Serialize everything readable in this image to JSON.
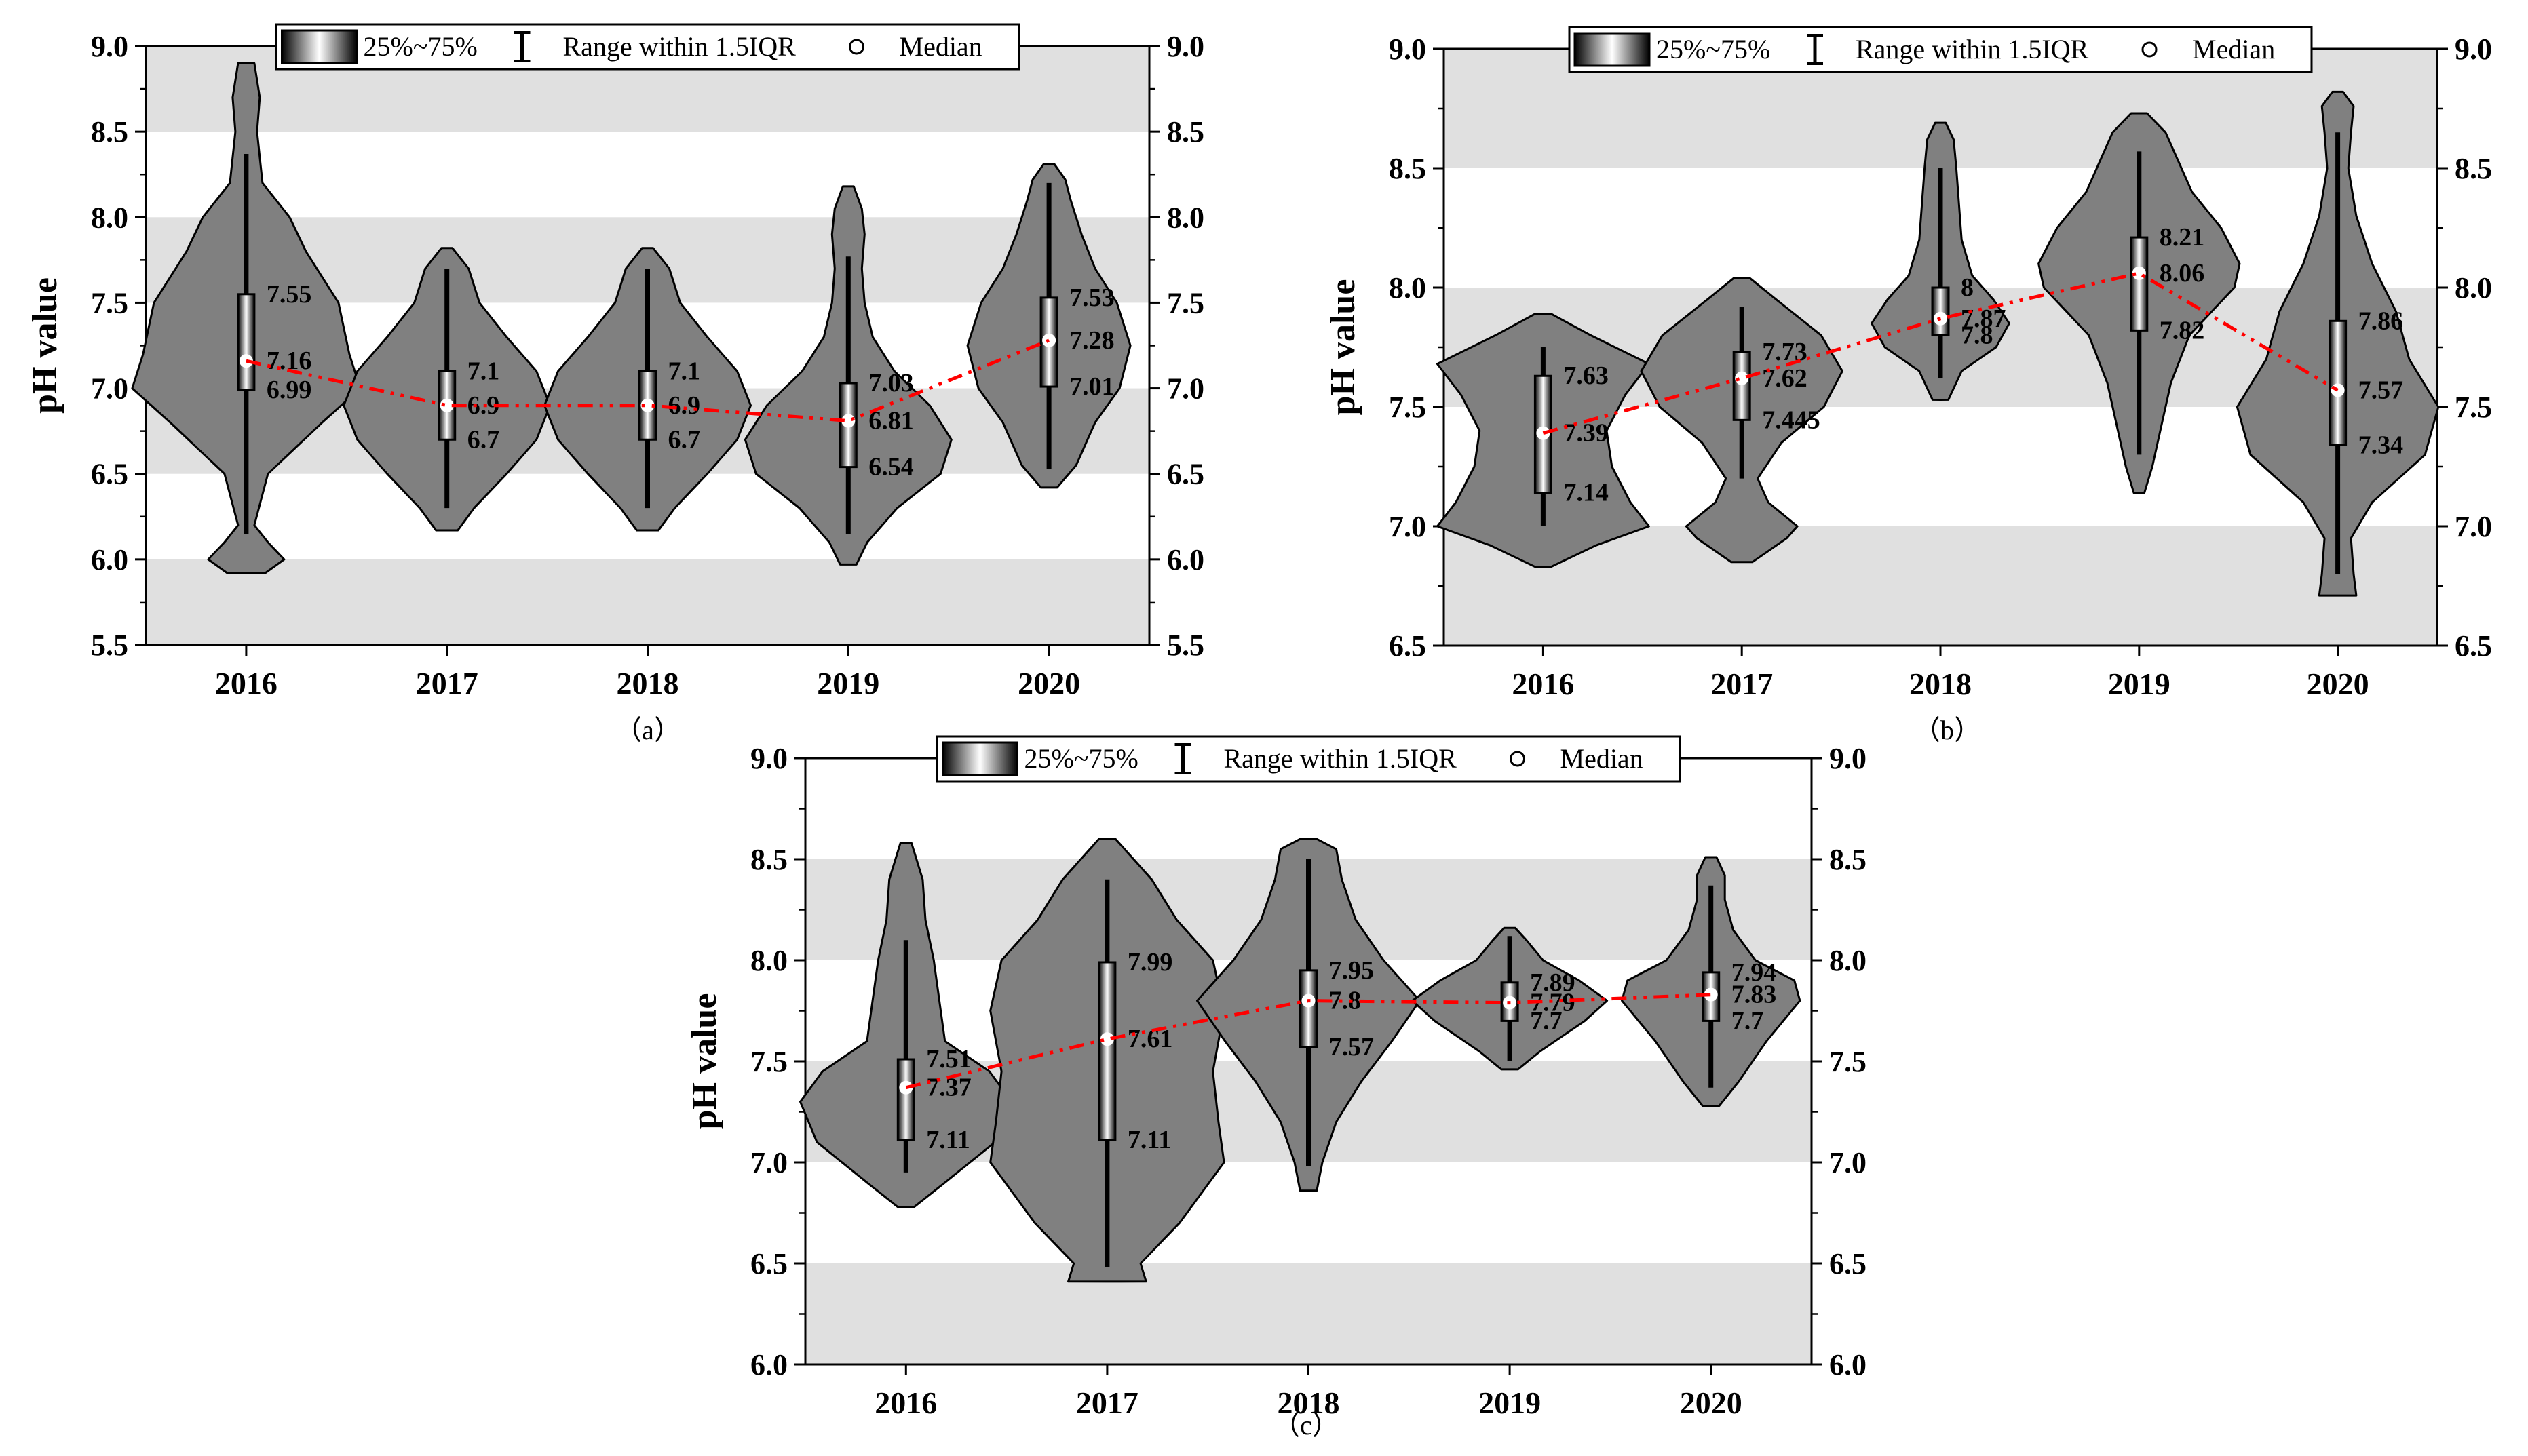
{
  "legend": {
    "iqr_label": "25%~75%",
    "range_label": "Range within 1.5IQR",
    "median_label": "Median"
  },
  "colors": {
    "violin_fill": "#808080",
    "band_fill": "#e0e0e0",
    "trend_line": "#ff0000",
    "median_marker": "#ffffff"
  },
  "chart_data": [
    {
      "type": "violin",
      "panel_label": "（a）",
      "ylabel": "pH value",
      "ylim": [
        5.5,
        9.0
      ],
      "yticks": [
        "5.5",
        "6.0",
        "6.5",
        "7.0",
        "7.5",
        "8.0",
        "8.5",
        "9.0"
      ],
      "bands": [
        [
          8.5,
          9.0
        ],
        [
          7.5,
          8.0
        ],
        [
          6.5,
          7.0
        ],
        [
          5.5,
          6.0
        ]
      ],
      "categories": [
        "2016",
        "2017",
        "2018",
        "2019",
        "2020"
      ],
      "violins": [
        {
          "year": "2016",
          "q1": 6.99,
          "median": 7.16,
          "q3": 7.55,
          "whisker_low": 6.15,
          "whisker_high": 8.37,
          "q1_label": "6.99",
          "median_label": "7.16",
          "q3_label": "7.55",
          "shape": [
            [
              5.92,
              0.07
            ],
            [
              6.0,
              0.14
            ],
            [
              6.1,
              0.08
            ],
            [
              6.2,
              0.03
            ],
            [
              6.5,
              0.08
            ],
            [
              6.8,
              0.28
            ],
            [
              7.0,
              0.42
            ],
            [
              7.2,
              0.38
            ],
            [
              7.5,
              0.34
            ],
            [
              7.8,
              0.22
            ],
            [
              8.0,
              0.16
            ],
            [
              8.2,
              0.06
            ],
            [
              8.5,
              0.04
            ],
            [
              8.7,
              0.05
            ],
            [
              8.9,
              0.03
            ]
          ]
        },
        {
          "year": "2017",
          "q1": 6.7,
          "median": 6.9,
          "q3": 7.1,
          "whisker_low": 6.3,
          "whisker_high": 7.7,
          "q1_label": "6.7",
          "median_label": "6.9",
          "q3_label": "7.1",
          "shape": [
            [
              6.17,
              0.04
            ],
            [
              6.3,
              0.1
            ],
            [
              6.5,
              0.22
            ],
            [
              6.7,
              0.33
            ],
            [
              6.9,
              0.38
            ],
            [
              7.1,
              0.33
            ],
            [
              7.3,
              0.22
            ],
            [
              7.5,
              0.12
            ],
            [
              7.7,
              0.08
            ],
            [
              7.82,
              0.02
            ]
          ]
        },
        {
          "year": "2018",
          "q1": 6.7,
          "median": 6.9,
          "q3": 7.1,
          "whisker_low": 6.3,
          "whisker_high": 7.7,
          "q1_label": "6.7",
          "median_label": "6.9",
          "q3_label": "7.1",
          "shape": [
            [
              6.17,
              0.04
            ],
            [
              6.3,
              0.1
            ],
            [
              6.5,
              0.22
            ],
            [
              6.7,
              0.33
            ],
            [
              6.9,
              0.38
            ],
            [
              7.1,
              0.33
            ],
            [
              7.3,
              0.22
            ],
            [
              7.5,
              0.12
            ],
            [
              7.7,
              0.08
            ],
            [
              7.82,
              0.02
            ]
          ]
        },
        {
          "year": "2019",
          "q1": 6.54,
          "median": 6.81,
          "q3": 7.03,
          "whisker_low": 6.15,
          "whisker_high": 7.77,
          "q1_label": "6.54",
          "median_label": "6.81",
          "q3_label": "7.03",
          "shape": [
            [
              5.97,
              0.03
            ],
            [
              6.1,
              0.07
            ],
            [
              6.3,
              0.18
            ],
            [
              6.5,
              0.34
            ],
            [
              6.7,
              0.38
            ],
            [
              6.9,
              0.3
            ],
            [
              7.1,
              0.17
            ],
            [
              7.3,
              0.09
            ],
            [
              7.5,
              0.06
            ],
            [
              7.7,
              0.05
            ],
            [
              7.9,
              0.06
            ],
            [
              8.05,
              0.05
            ],
            [
              8.18,
              0.02
            ]
          ]
        },
        {
          "year": "2020",
          "q1": 7.01,
          "median": 7.28,
          "q3": 7.53,
          "whisker_low": 6.53,
          "whisker_high": 8.2,
          "q1_label": "7.01",
          "median_label": "7.28",
          "q3_label": "7.53",
          "shape": [
            [
              6.42,
              0.03
            ],
            [
              6.55,
              0.1
            ],
            [
              6.8,
              0.17
            ],
            [
              7.0,
              0.26
            ],
            [
              7.25,
              0.3
            ],
            [
              7.5,
              0.25
            ],
            [
              7.7,
              0.17
            ],
            [
              7.9,
              0.12
            ],
            [
              8.1,
              0.08
            ],
            [
              8.22,
              0.06
            ],
            [
              8.31,
              0.02
            ]
          ]
        }
      ]
    },
    {
      "type": "violin",
      "panel_label": "（b）",
      "ylabel": "pH value",
      "ylim": [
        6.5,
        9.0
      ],
      "yticks": [
        "6.5",
        "7.0",
        "7.5",
        "8.0",
        "8.5",
        "9.0"
      ],
      "bands": [
        [
          8.5,
          9.0
        ],
        [
          7.5,
          8.0
        ],
        [
          6.5,
          7.0
        ]
      ],
      "categories": [
        "2016",
        "2017",
        "2018",
        "2019",
        "2020"
      ],
      "violins": [
        {
          "year": "2016",
          "q1": 7.14,
          "median": 7.39,
          "q3": 7.63,
          "whisker_low": 7.0,
          "whisker_high": 7.75,
          "q1_label": "7.14",
          "median_label": "7.39",
          "q3_label": "7.63",
          "shape": [
            [
              6.83,
              0.03
            ],
            [
              6.92,
              0.2
            ],
            [
              7.0,
              0.4
            ],
            [
              7.1,
              0.33
            ],
            [
              7.25,
              0.26
            ],
            [
              7.4,
              0.24
            ],
            [
              7.55,
              0.31
            ],
            [
              7.68,
              0.4
            ],
            [
              7.8,
              0.18
            ],
            [
              7.89,
              0.03
            ]
          ]
        },
        {
          "year": "2017",
          "q1": 7.445,
          "median": 7.62,
          "q3": 7.73,
          "whisker_low": 7.2,
          "whisker_high": 7.92,
          "q1_label": "7.445",
          "median_label": "7.62",
          "q3_label": "7.73",
          "shape": [
            [
              6.85,
              0.04
            ],
            [
              6.95,
              0.17
            ],
            [
              7.0,
              0.21
            ],
            [
              7.1,
              0.1
            ],
            [
              7.2,
              0.06
            ],
            [
              7.35,
              0.15
            ],
            [
              7.5,
              0.31
            ],
            [
              7.65,
              0.38
            ],
            [
              7.8,
              0.3
            ],
            [
              7.95,
              0.13
            ],
            [
              8.04,
              0.03
            ]
          ]
        },
        {
          "year": "2018",
          "q1": 7.8,
          "median": 7.87,
          "q3": 8.0,
          "whisker_low": 7.62,
          "whisker_high": 8.5,
          "q1_label": "7.8",
          "median_label": "7.87",
          "q3_label": "8",
          "shape": [
            [
              7.53,
              0.03
            ],
            [
              7.65,
              0.08
            ],
            [
              7.75,
              0.21
            ],
            [
              7.85,
              0.26
            ],
            [
              7.95,
              0.2
            ],
            [
              8.05,
              0.12
            ],
            [
              8.2,
              0.08
            ],
            [
              8.35,
              0.07
            ],
            [
              8.5,
              0.06
            ],
            [
              8.62,
              0.05
            ],
            [
              8.69,
              0.02
            ]
          ]
        },
        {
          "year": "2019",
          "q1": 7.82,
          "median": 8.06,
          "q3": 8.21,
          "whisker_low": 7.3,
          "whisker_high": 8.57,
          "q1_label": "7.82",
          "median_label": "8.06",
          "q3_label": "8.21",
          "shape": [
            [
              7.14,
              0.02
            ],
            [
              7.25,
              0.05
            ],
            [
              7.4,
              0.08
            ],
            [
              7.6,
              0.12
            ],
            [
              7.8,
              0.19
            ],
            [
              8.0,
              0.36
            ],
            [
              8.1,
              0.38
            ],
            [
              8.25,
              0.31
            ],
            [
              8.4,
              0.2
            ],
            [
              8.55,
              0.14
            ],
            [
              8.65,
              0.1
            ],
            [
              8.73,
              0.03
            ]
          ]
        },
        {
          "year": "2020",
          "q1": 7.34,
          "median": 7.57,
          "q3": 7.86,
          "whisker_low": 6.8,
          "whisker_high": 8.65,
          "q1_label": "7.34",
          "median_label": "7.57",
          "q3_label": "7.86",
          "shape": [
            [
              6.71,
              0.07
            ],
            [
              6.8,
              0.06
            ],
            [
              6.95,
              0.05
            ],
            [
              7.1,
              0.13
            ],
            [
              7.3,
              0.33
            ],
            [
              7.5,
              0.38
            ],
            [
              7.7,
              0.27
            ],
            [
              7.9,
              0.22
            ],
            [
              8.1,
              0.13
            ],
            [
              8.3,
              0.07
            ],
            [
              8.5,
              0.04
            ],
            [
              8.65,
              0.05
            ],
            [
              8.76,
              0.06
            ],
            [
              8.82,
              0.02
            ]
          ]
        }
      ]
    },
    {
      "type": "violin",
      "panel_label": "（c）",
      "ylabel": "pH value",
      "ylim": [
        6.0,
        9.0
      ],
      "yticks": [
        "6.0",
        "6.5",
        "7.0",
        "7.5",
        "8.0",
        "8.5",
        "9.0"
      ],
      "bands": [
        [
          8.0,
          8.5
        ],
        [
          7.0,
          7.5
        ],
        [
          6.0,
          6.5
        ]
      ],
      "categories": [
        "2016",
        "2017",
        "2018",
        "2019",
        "2020"
      ],
      "violins": [
        {
          "year": "2016",
          "q1": 7.11,
          "median": 7.37,
          "q3": 7.51,
          "whisker_low": 6.95,
          "whisker_high": 8.1,
          "q1_label": "7.11",
          "median_label": "7.37",
          "q3_label": "7.51",
          "shape": [
            [
              6.78,
              0.03
            ],
            [
              6.9,
              0.14
            ],
            [
              7.1,
              0.32
            ],
            [
              7.3,
              0.38
            ],
            [
              7.45,
              0.3
            ],
            [
              7.6,
              0.14
            ],
            [
              7.8,
              0.12
            ],
            [
              8.0,
              0.1
            ],
            [
              8.2,
              0.07
            ],
            [
              8.4,
              0.06
            ],
            [
              8.58,
              0.02
            ]
          ]
        },
        {
          "year": "2017",
          "q1": 7.11,
          "median": 7.61,
          "q3": 7.99,
          "whisker_low": 6.48,
          "whisker_high": 8.4,
          "q1_label": "7.11",
          "median_label": "7.61",
          "q3_label": "7.99",
          "shape": [
            [
              6.41,
              0.14
            ],
            [
              6.5,
              0.12
            ],
            [
              6.7,
              0.26
            ],
            [
              7.0,
              0.42
            ],
            [
              7.2,
              0.4
            ],
            [
              7.45,
              0.38
            ],
            [
              7.75,
              0.42
            ],
            [
              8.0,
              0.38
            ],
            [
              8.2,
              0.25
            ],
            [
              8.4,
              0.16
            ],
            [
              8.6,
              0.03
            ]
          ]
        },
        {
          "year": "2018",
          "q1": 7.57,
          "median": 7.8,
          "q3": 7.95,
          "whisker_low": 6.98,
          "whisker_high": 8.5,
          "q1_label": "7.57",
          "median_label": "7.8",
          "q3_label": "7.95",
          "shape": [
            [
              6.86,
              0.03
            ],
            [
              7.0,
              0.05
            ],
            [
              7.2,
              0.1
            ],
            [
              7.4,
              0.19
            ],
            [
              7.6,
              0.3
            ],
            [
              7.8,
              0.4
            ],
            [
              8.0,
              0.27
            ],
            [
              8.2,
              0.17
            ],
            [
              8.4,
              0.12
            ],
            [
              8.55,
              0.1
            ],
            [
              8.6,
              0.03
            ]
          ]
        },
        {
          "year": "2019",
          "q1": 7.7,
          "median": 7.79,
          "q3": 7.89,
          "whisker_low": 7.5,
          "whisker_high": 8.12,
          "q1_label": "7.7",
          "median_label": "7.79",
          "q3_label": "7.89",
          "shape": [
            [
              7.46,
              0.03
            ],
            [
              7.55,
              0.11
            ],
            [
              7.7,
              0.27
            ],
            [
              7.8,
              0.35
            ],
            [
              7.9,
              0.25
            ],
            [
              8.0,
              0.12
            ],
            [
              8.1,
              0.06
            ],
            [
              8.16,
              0.02
            ]
          ]
        },
        {
          "year": "2020",
          "q1": 7.7,
          "median": 7.83,
          "q3": 7.94,
          "whisker_low": 7.37,
          "whisker_high": 8.37,
          "q1_label": "7.7",
          "median_label": "7.83",
          "q3_label": "7.94",
          "shape": [
            [
              7.28,
              0.03
            ],
            [
              7.4,
              0.1
            ],
            [
              7.6,
              0.2
            ],
            [
              7.8,
              0.32
            ],
            [
              7.9,
              0.3
            ],
            [
              8.0,
              0.16
            ],
            [
              8.15,
              0.08
            ],
            [
              8.3,
              0.05
            ],
            [
              8.42,
              0.05
            ],
            [
              8.51,
              0.02
            ]
          ]
        }
      ]
    }
  ]
}
